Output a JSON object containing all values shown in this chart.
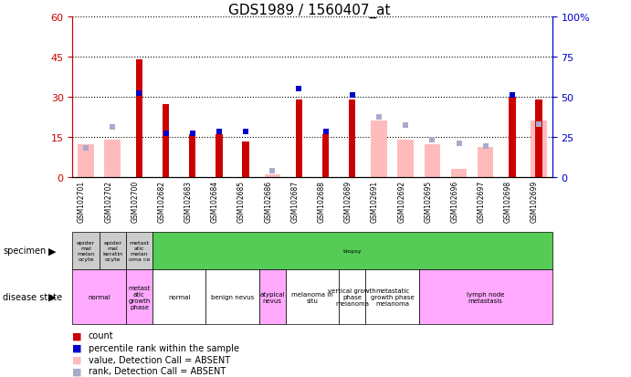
{
  "title": "GDS1989 / 1560407_at",
  "samples": [
    "GSM102701",
    "GSM102702",
    "GSM102700",
    "GSM102682",
    "GSM102683",
    "GSM102684",
    "GSM102685",
    "GSM102686",
    "GSM102687",
    "GSM102688",
    "GSM102689",
    "GSM102691",
    "GSM102692",
    "GSM102695",
    "GSM102696",
    "GSM102697",
    "GSM102698",
    "GSM102699"
  ],
  "count": [
    null,
    null,
    44,
    27,
    16,
    16,
    13,
    null,
    29,
    16,
    29,
    null,
    null,
    null,
    null,
    null,
    30,
    29
  ],
  "percentile": [
    null,
    null,
    52,
    27,
    27,
    28,
    28,
    null,
    55,
    28,
    51,
    null,
    null,
    null,
    null,
    null,
    51,
    null
  ],
  "absent_value": [
    12,
    14,
    null,
    null,
    null,
    null,
    null,
    1,
    null,
    null,
    null,
    21,
    14,
    12,
    3,
    11,
    null,
    21
  ],
  "absent_rank": [
    18,
    31,
    null,
    null,
    null,
    null,
    null,
    4,
    null,
    null,
    null,
    37,
    32,
    23,
    21,
    19,
    null,
    33
  ],
  "ylim_left": [
    0,
    60
  ],
  "ylim_right": [
    0,
    100
  ],
  "yticks_left": [
    0,
    15,
    30,
    45,
    60
  ],
  "yticks_right": [
    0,
    25,
    50,
    75,
    100
  ],
  "left_axis_color": "#cc0000",
  "right_axis_color": "#0000cc",
  "bar_color": "#cc0000",
  "percentile_color": "#0000cc",
  "absent_bar_color": "#ffbbbb",
  "absent_rank_color": "#aaaacc",
  "specimen_groups": [
    {
      "span": [
        0,
        1
      ],
      "label": "epider\nmal\nmelan\nocyte",
      "bg": "#cccccc"
    },
    {
      "span": [
        1,
        2
      ],
      "label": "epider\nmal\nkeratin\nocyte",
      "bg": "#cccccc"
    },
    {
      "span": [
        2,
        3
      ],
      "label": "metast\natic\nmelan\noma ce",
      "bg": "#cccccc"
    },
    {
      "span": [
        3,
        18
      ],
      "label": "biopsy",
      "bg": "#55cc55"
    }
  ],
  "disease_groups": [
    {
      "span": [
        0,
        2
      ],
      "label": "normal",
      "bg": "#ffaaff"
    },
    {
      "span": [
        2,
        3
      ],
      "label": "metast\natic\ngrowth\nphase",
      "bg": "#ffaaff"
    },
    {
      "span": [
        3,
        5
      ],
      "label": "normal",
      "bg": "#ffffff"
    },
    {
      "span": [
        5,
        7
      ],
      "label": "benign nevus",
      "bg": "#ffffff"
    },
    {
      "span": [
        7,
        8
      ],
      "label": "atypical\nnevus",
      "bg": "#ffaaff"
    },
    {
      "span": [
        8,
        10
      ],
      "label": "melanoma in\nsitu",
      "bg": "#ffffff"
    },
    {
      "span": [
        10,
        11
      ],
      "label": "vertical growth\nphase\nmelanoma",
      "bg": "#ffffff"
    },
    {
      "span": [
        11,
        13
      ],
      "label": "metastatic\ngrowth phase\nmelanoma",
      "bg": "#ffffff"
    },
    {
      "span": [
        13,
        18
      ],
      "label": "lymph node\nmetastasis",
      "bg": "#ffaaff"
    }
  ],
  "legend_items": [
    {
      "color": "#cc0000",
      "label": "count"
    },
    {
      "color": "#0000cc",
      "label": "percentile rank within the sample"
    },
    {
      "color": "#ffbbbb",
      "label": "value, Detection Call = ABSENT"
    },
    {
      "color": "#aaaacc",
      "label": "rank, Detection Call = ABSENT"
    }
  ]
}
